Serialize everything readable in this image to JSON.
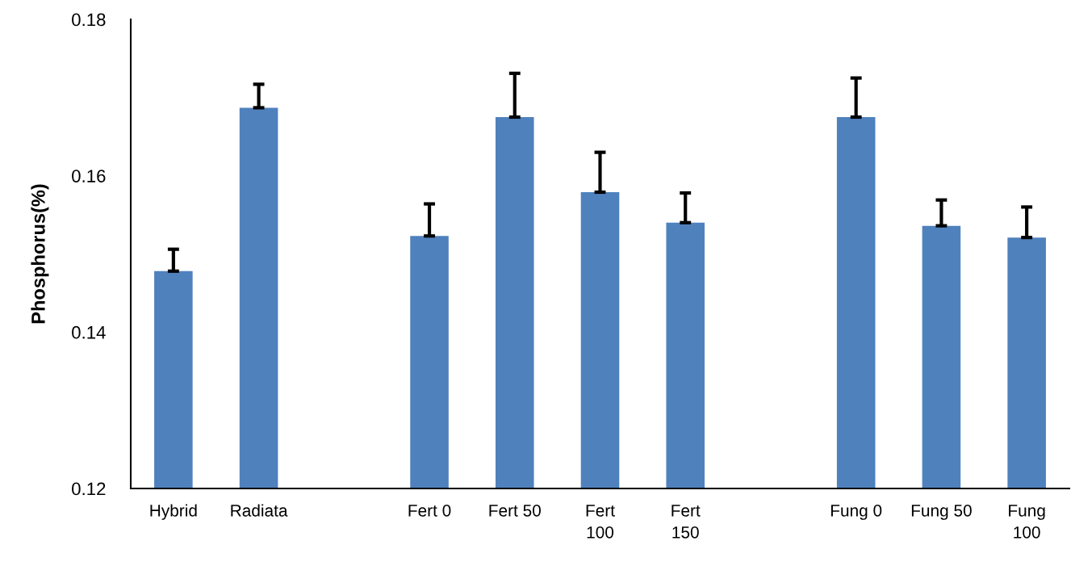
{
  "chart_data": {
    "type": "bar",
    "ylabel": "Phosphorus(%)",
    "categories": [
      "Hybrid",
      "Radiata",
      null,
      "Fert 0",
      "Fert 50",
      "Fert 100",
      "Fert 150",
      null,
      "Fung 0",
      "Fung 50",
      "Fung 100"
    ],
    "values": [
      0.1478,
      0.1687,
      null,
      0.1523,
      0.1675,
      0.1579,
      0.154,
      null,
      0.1675,
      0.1536,
      0.1521
    ],
    "errors": [
      [
        0.1478,
        0.1506
      ],
      [
        0.1687,
        0.1717
      ],
      null,
      [
        0.1523,
        0.1564
      ],
      [
        0.1675,
        0.1731
      ],
      [
        0.1579,
        0.163
      ],
      [
        0.154,
        0.1578
      ],
      null,
      [
        0.1675,
        0.1725
      ],
      [
        0.1536,
        0.1569
      ],
      [
        0.1521,
        0.156
      ]
    ],
    "color": "#4f81bd",
    "ylim": [
      0.12,
      0.18
    ],
    "yticks": [
      {
        "value": 0.12,
        "label": "0.12"
      },
      {
        "value": 0.14,
        "label": "0.14"
      },
      {
        "value": 0.16,
        "label": "0.16"
      },
      {
        "value": 0.18,
        "label": "0.18"
      }
    ],
    "grid": false,
    "legend": false
  }
}
